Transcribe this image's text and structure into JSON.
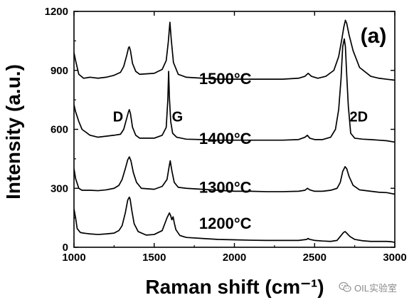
{
  "chart_data": {
    "type": "line",
    "panel_label": "(a)",
    "xlabel": "Raman shift (cm⁻¹)",
    "ylabel": "Intensity (a.u.)",
    "xlim": [
      1000,
      3000
    ],
    "ylim": [
      0,
      1200
    ],
    "xticks": [
      1000,
      1500,
      2000,
      2500,
      3000
    ],
    "yticks": [
      0,
      300,
      600,
      900,
      1200
    ],
    "xtick_labels": [
      "1000",
      "1500",
      "2000",
      "2500",
      "3000"
    ],
    "ytick_labels": [
      "0",
      "300",
      "600",
      "900",
      "1200"
    ],
    "grid": false,
    "line_color": "#000000",
    "series": [
      {
        "label": "1200°C",
        "label_pos": [
          1780,
          95
        ],
        "x": [
          1000,
          1010,
          1020,
          1040,
          1060,
          1080,
          1100,
          1150,
          1200,
          1250,
          1280,
          1300,
          1320,
          1335,
          1345,
          1350,
          1360,
          1375,
          1400,
          1450,
          1500,
          1550,
          1580,
          1595,
          1603,
          1610,
          1618,
          1625,
          1635,
          1660,
          1700,
          1800,
          1900,
          2000,
          2100,
          2200,
          2300,
          2400,
          2450,
          2460,
          2470,
          2500,
          2550,
          2600,
          2640,
          2660,
          2680,
          2690,
          2700,
          2720,
          2750,
          2800,
          2850,
          2900,
          2950,
          2980,
          3000
        ],
        "y": [
          195,
          150,
          95,
          75,
          72,
          70,
          68,
          65,
          68,
          72,
          85,
          110,
          175,
          240,
          255,
          245,
          190,
          120,
          80,
          62,
          65,
          85,
          150,
          175,
          160,
          140,
          155,
          125,
          90,
          60,
          50,
          45,
          40,
          38,
          36,
          35,
          35,
          35,
          40,
          45,
          40,
          35,
          32,
          30,
          35,
          55,
          75,
          80,
          72,
          55,
          40,
          33,
          30,
          30,
          30,
          28,
          25
        ]
      },
      {
        "label": "1300°C",
        "label_pos": [
          1780,
          277
        ],
        "x": [
          1000,
          1010,
          1030,
          1050,
          1100,
          1150,
          1200,
          1250,
          1280,
          1300,
          1320,
          1335,
          1345,
          1355,
          1370,
          1390,
          1420,
          1500,
          1550,
          1580,
          1593,
          1600,
          1610,
          1625,
          1650,
          1700,
          1800,
          1900,
          2000,
          2100,
          2200,
          2300,
          2400,
          2440,
          2455,
          2470,
          2500,
          2550,
          2600,
          2640,
          2660,
          2675,
          2690,
          2700,
          2715,
          2740,
          2780,
          2850,
          2900,
          2950,
          3000
        ],
        "y": [
          400,
          350,
          300,
          290,
          290,
          288,
          292,
          300,
          315,
          345,
          400,
          445,
          460,
          440,
          380,
          330,
          300,
          295,
          310,
          345,
          410,
          440,
          390,
          330,
          305,
          300,
          295,
          290,
          285,
          285,
          283,
          283,
          285,
          290,
          300,
          292,
          285,
          285,
          290,
          300,
          330,
          385,
          410,
          400,
          360,
          315,
          292,
          285,
          280,
          278,
          270
        ]
      },
      {
        "label": "1400°C",
        "label_pos": [
          1780,
          525
        ],
        "x": [
          1000,
          1010,
          1030,
          1050,
          1100,
          1150,
          1200,
          1250,
          1290,
          1310,
          1330,
          1340,
          1345,
          1352,
          1365,
          1385,
          1410,
          1500,
          1550,
          1575,
          1585,
          1590,
          1595,
          1603,
          1615,
          1640,
          1700,
          1800,
          1900,
          2000,
          2100,
          2200,
          2300,
          2400,
          2440,
          2455,
          2470,
          2500,
          2550,
          2600,
          2630,
          2650,
          2665,
          2675,
          2685,
          2692,
          2700,
          2710,
          2725,
          2750,
          2800,
          2850,
          2900,
          2950,
          3000
        ],
        "y": [
          725,
          690,
          640,
          600,
          570,
          560,
          565,
          570,
          575,
          600,
          660,
          690,
          700,
          680,
          610,
          570,
          555,
          555,
          570,
          610,
          750,
          895,
          760,
          640,
          580,
          560,
          550,
          548,
          545,
          545,
          545,
          545,
          545,
          548,
          560,
          570,
          555,
          548,
          548,
          560,
          600,
          700,
          860,
          1020,
          1060,
          1020,
          880,
          720,
          580,
          555,
          550,
          548,
          545,
          542,
          535
        ]
      },
      {
        "label": "1500°C",
        "label_pos": [
          1780,
          830
        ],
        "x": [
          1000,
          1010,
          1030,
          1060,
          1100,
          1150,
          1200,
          1250,
          1290,
          1310,
          1330,
          1340,
          1345,
          1352,
          1365,
          1385,
          1410,
          1500,
          1550,
          1575,
          1588,
          1598,
          1606,
          1620,
          1650,
          1700,
          1800,
          1900,
          2000,
          2100,
          2200,
          2300,
          2400,
          2440,
          2460,
          2480,
          2520,
          2570,
          2620,
          2650,
          2670,
          2682,
          2692,
          2700,
          2715,
          2740,
          2780,
          2850,
          2900,
          2950,
          3000
        ],
        "y": [
          990,
          950,
          880,
          860,
          865,
          860,
          865,
          875,
          890,
          920,
          980,
          1015,
          1020,
          1000,
          935,
          895,
          880,
          885,
          905,
          950,
          1045,
          1145,
          1060,
          940,
          880,
          865,
          860,
          855,
          855,
          855,
          855,
          855,
          860,
          870,
          885,
          870,
          860,
          870,
          900,
          970,
          1060,
          1120,
          1155,
          1140,
          1080,
          1000,
          915,
          870,
          860,
          855,
          850
        ]
      }
    ],
    "annotations": [
      {
        "text": "D",
        "x": 1275,
        "y": 640
      },
      {
        "text": "G",
        "x": 1645,
        "y": 640
      },
      {
        "text": "2D",
        "x": 2775,
        "y": 640
      }
    ]
  },
  "watermark": {
    "text": "OIL实验室",
    "icon": "wechat-icon"
  }
}
